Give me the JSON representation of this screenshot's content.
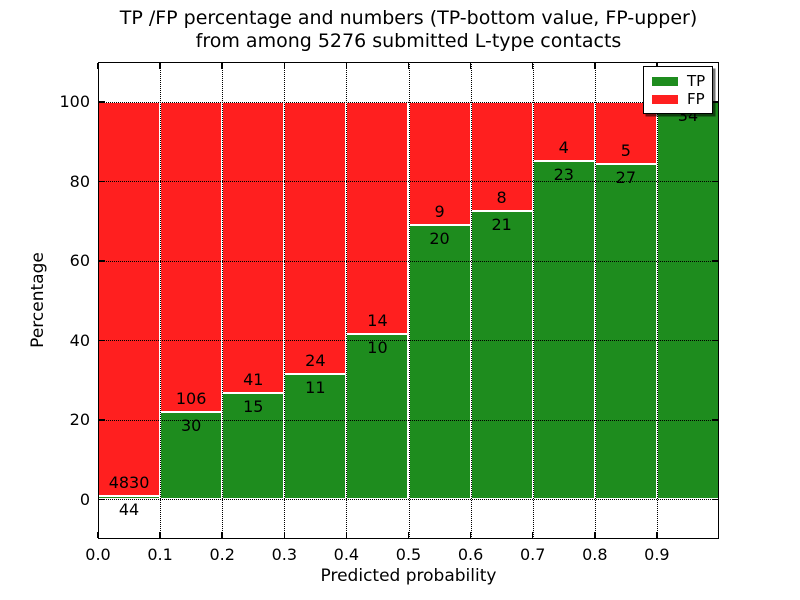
{
  "figure": {
    "background": "#ffffff",
    "text_color": "#000000"
  },
  "chart_data": {
    "type": "bar",
    "stacked": true,
    "normalized_to_percent": 100,
    "title_line1": "TP /FP percentage and numbers (TP-bottom value, FP-upper)",
    "title_line2": "from among 5276 submitted L-type contacts",
    "xlabel": "Predicted probability",
    "ylabel": "Percentage",
    "xlim": [
      0.0,
      1.0
    ],
    "ylim": [
      -10,
      110
    ],
    "x_tick_labels": [
      "0.0",
      "0.1",
      "0.2",
      "0.3",
      "0.4",
      "0.5",
      "0.6",
      "0.7",
      "0.8",
      "0.9"
    ],
    "x_tick_values": [
      0.0,
      0.1,
      0.2,
      0.3,
      0.4,
      0.5,
      0.6,
      0.7,
      0.8,
      0.9
    ],
    "y_tick_labels": [
      "0",
      "20",
      "40",
      "60",
      "80",
      "100"
    ],
    "y_tick_values": [
      0,
      20,
      40,
      60,
      80,
      100
    ],
    "grid": true,
    "bin_width": 0.1,
    "total_contacts": 5276,
    "colors": {
      "tp": "#1e8c1e",
      "fp": "#ff1f1f"
    },
    "legend": {
      "position": "upper-right",
      "entries": [
        {
          "label": "TP",
          "color": "#1e8c1e"
        },
        {
          "label": "FP",
          "color": "#ff1f1f"
        }
      ]
    },
    "bins": [
      {
        "range": [
          0.0,
          0.1
        ],
        "tp": 44,
        "fp": 4830,
        "tp_pct": 0.9,
        "fp_label_shown": true
      },
      {
        "range": [
          0.1,
          0.2
        ],
        "tp": 30,
        "fp": 106,
        "tp_pct": 22.1,
        "fp_label_shown": true
      },
      {
        "range": [
          0.2,
          0.3
        ],
        "tp": 15,
        "fp": 41,
        "tp_pct": 26.8,
        "fp_label_shown": true
      },
      {
        "range": [
          0.3,
          0.4
        ],
        "tp": 11,
        "fp": 24,
        "tp_pct": 31.4,
        "fp_label_shown": true
      },
      {
        "range": [
          0.4,
          0.5
        ],
        "tp": 10,
        "fp": 14,
        "tp_pct": 41.7,
        "fp_label_shown": true
      },
      {
        "range": [
          0.5,
          0.6
        ],
        "tp": 20,
        "fp": 9,
        "tp_pct": 69.0,
        "fp_label_shown": true
      },
      {
        "range": [
          0.6,
          0.7
        ],
        "tp": 21,
        "fp": 8,
        "tp_pct": 72.4,
        "fp_label_shown": true
      },
      {
        "range": [
          0.7,
          0.8
        ],
        "tp": 23,
        "fp": 4,
        "tp_pct": 85.2,
        "fp_label_shown": true
      },
      {
        "range": [
          0.8,
          0.9
        ],
        "tp": 27,
        "fp": 5,
        "tp_pct": 84.4,
        "fp_label_shown": true
      },
      {
        "range": [
          0.9,
          1.0
        ],
        "tp": 34,
        "fp": 0,
        "tp_pct": 100.0,
        "fp_label_shown": false
      }
    ]
  }
}
